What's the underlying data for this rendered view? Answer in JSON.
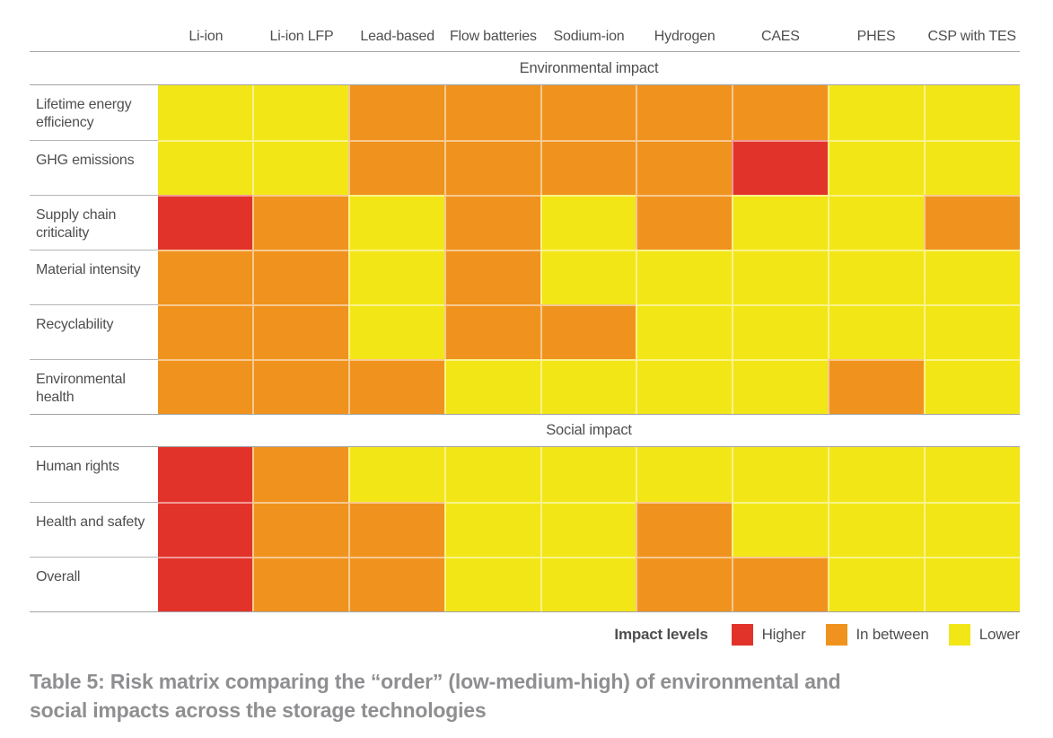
{
  "chart_data": {
    "type": "heatmap",
    "columns": [
      "Li-ion",
      "Li-ion LFP",
      "Lead-based",
      "Flow batteries",
      "Sodium-ion",
      "Hydrogen",
      "CAES",
      "PHES",
      "CSP with TES"
    ],
    "value_levels": [
      "higher",
      "between",
      "lower"
    ],
    "colors": {
      "higher": "#e2332b",
      "between": "#f0931e",
      "lower": "#f3e617"
    },
    "sections": [
      {
        "title": "Environmental impact",
        "rows": [
          {
            "label": "Lifetime energy efficiency",
            "values": [
              "lower",
              "lower",
              "between",
              "between",
              "between",
              "between",
              "between",
              "lower",
              "lower"
            ]
          },
          {
            "label": "GHG emissions",
            "values": [
              "lower",
              "lower",
              "between",
              "between",
              "between",
              "between",
              "higher",
              "lower",
              "lower"
            ]
          },
          {
            "label": "Supply chain criticality",
            "values": [
              "higher",
              "between",
              "lower",
              "between",
              "lower",
              "between",
              "lower",
              "lower",
              "between"
            ]
          },
          {
            "label": "Material intensity",
            "values": [
              "between",
              "between",
              "lower",
              "between",
              "lower",
              "lower",
              "lower",
              "lower",
              "lower"
            ]
          },
          {
            "label": "Recyclability",
            "values": [
              "between",
              "between",
              "lower",
              "between",
              "between",
              "lower",
              "lower",
              "lower",
              "lower"
            ]
          },
          {
            "label": "Environmental health",
            "values": [
              "between",
              "between",
              "between",
              "lower",
              "lower",
              "lower",
              "lower",
              "between",
              "lower"
            ]
          }
        ]
      },
      {
        "title": "Social impact",
        "rows": [
          {
            "label": "Human rights",
            "values": [
              "higher",
              "between",
              "lower",
              "lower",
              "lower",
              "lower",
              "lower",
              "lower",
              "lower"
            ]
          },
          {
            "label": "Health and safety",
            "values": [
              "higher",
              "between",
              "between",
              "lower",
              "lower",
              "between",
              "lower",
              "lower",
              "lower"
            ]
          },
          {
            "label": "Overall",
            "values": [
              "higher",
              "between",
              "between",
              "lower",
              "lower",
              "between",
              "between",
              "lower",
              "lower"
            ]
          }
        ]
      }
    ],
    "legend": {
      "title": "Impact levels",
      "items": [
        {
          "label": "Higher",
          "level": "higher",
          "color": "#e2332b"
        },
        {
          "label": "In between",
          "level": "between",
          "color": "#f0931e"
        },
        {
          "label": "Lower",
          "level": "lower",
          "color": "#f3e617"
        }
      ]
    }
  },
  "caption": {
    "line1": "Table 5: Risk matrix comparing the “order” (low-medium-high) of environmental and",
    "line2": "social impacts across the storage technologies"
  }
}
